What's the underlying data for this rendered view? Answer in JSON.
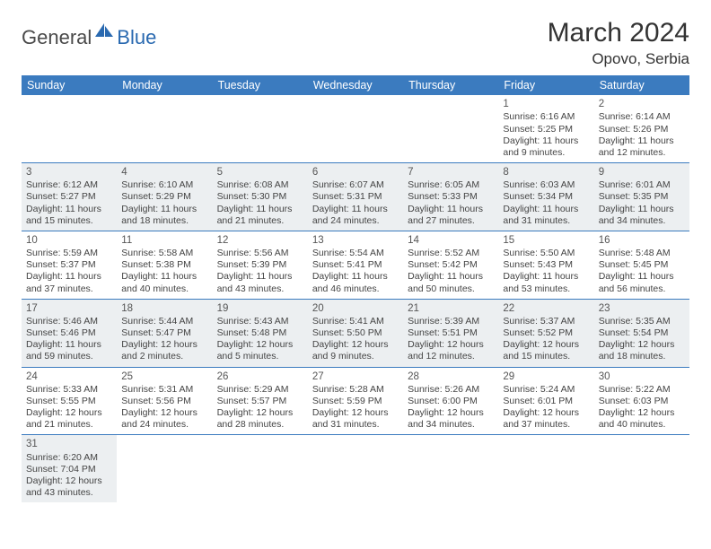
{
  "brand": {
    "general": "General",
    "blue": "Blue"
  },
  "title": "March 2024",
  "location": "Opovo, Serbia",
  "colors": {
    "header_bg": "#3b7bbf",
    "header_fg": "#ffffff",
    "row_alt_bg": "#eceff1",
    "brand_blue": "#2969b0",
    "text": "#444444",
    "rule": "#3b7bbf"
  },
  "layout": {
    "columns": 7,
    "font_family": "Arial",
    "daynum_fontsize": 11.5,
    "cell_fontsize": 10.5
  },
  "weekdays": [
    "Sunday",
    "Monday",
    "Tuesday",
    "Wednesday",
    "Thursday",
    "Friday",
    "Saturday"
  ],
  "weeks": [
    {
      "alt": false,
      "days": [
        null,
        null,
        null,
        null,
        null,
        {
          "n": "1",
          "sunrise": "Sunrise: 6:16 AM",
          "sunset": "Sunset: 5:25 PM",
          "daylight": "Daylight: 11 hours and 9 minutes."
        },
        {
          "n": "2",
          "sunrise": "Sunrise: 6:14 AM",
          "sunset": "Sunset: 5:26 PM",
          "daylight": "Daylight: 11 hours and 12 minutes."
        }
      ]
    },
    {
      "alt": true,
      "days": [
        {
          "n": "3",
          "sunrise": "Sunrise: 6:12 AM",
          "sunset": "Sunset: 5:27 PM",
          "daylight": "Daylight: 11 hours and 15 minutes."
        },
        {
          "n": "4",
          "sunrise": "Sunrise: 6:10 AM",
          "sunset": "Sunset: 5:29 PM",
          "daylight": "Daylight: 11 hours and 18 minutes."
        },
        {
          "n": "5",
          "sunrise": "Sunrise: 6:08 AM",
          "sunset": "Sunset: 5:30 PM",
          "daylight": "Daylight: 11 hours and 21 minutes."
        },
        {
          "n": "6",
          "sunrise": "Sunrise: 6:07 AM",
          "sunset": "Sunset: 5:31 PM",
          "daylight": "Daylight: 11 hours and 24 minutes."
        },
        {
          "n": "7",
          "sunrise": "Sunrise: 6:05 AM",
          "sunset": "Sunset: 5:33 PM",
          "daylight": "Daylight: 11 hours and 27 minutes."
        },
        {
          "n": "8",
          "sunrise": "Sunrise: 6:03 AM",
          "sunset": "Sunset: 5:34 PM",
          "daylight": "Daylight: 11 hours and 31 minutes."
        },
        {
          "n": "9",
          "sunrise": "Sunrise: 6:01 AM",
          "sunset": "Sunset: 5:35 PM",
          "daylight": "Daylight: 11 hours and 34 minutes."
        }
      ]
    },
    {
      "alt": false,
      "days": [
        {
          "n": "10",
          "sunrise": "Sunrise: 5:59 AM",
          "sunset": "Sunset: 5:37 PM",
          "daylight": "Daylight: 11 hours and 37 minutes."
        },
        {
          "n": "11",
          "sunrise": "Sunrise: 5:58 AM",
          "sunset": "Sunset: 5:38 PM",
          "daylight": "Daylight: 11 hours and 40 minutes."
        },
        {
          "n": "12",
          "sunrise": "Sunrise: 5:56 AM",
          "sunset": "Sunset: 5:39 PM",
          "daylight": "Daylight: 11 hours and 43 minutes."
        },
        {
          "n": "13",
          "sunrise": "Sunrise: 5:54 AM",
          "sunset": "Sunset: 5:41 PM",
          "daylight": "Daylight: 11 hours and 46 minutes."
        },
        {
          "n": "14",
          "sunrise": "Sunrise: 5:52 AM",
          "sunset": "Sunset: 5:42 PM",
          "daylight": "Daylight: 11 hours and 50 minutes."
        },
        {
          "n": "15",
          "sunrise": "Sunrise: 5:50 AM",
          "sunset": "Sunset: 5:43 PM",
          "daylight": "Daylight: 11 hours and 53 minutes."
        },
        {
          "n": "16",
          "sunrise": "Sunrise: 5:48 AM",
          "sunset": "Sunset: 5:45 PM",
          "daylight": "Daylight: 11 hours and 56 minutes."
        }
      ]
    },
    {
      "alt": true,
      "days": [
        {
          "n": "17",
          "sunrise": "Sunrise: 5:46 AM",
          "sunset": "Sunset: 5:46 PM",
          "daylight": "Daylight: 11 hours and 59 minutes."
        },
        {
          "n": "18",
          "sunrise": "Sunrise: 5:44 AM",
          "sunset": "Sunset: 5:47 PM",
          "daylight": "Daylight: 12 hours and 2 minutes."
        },
        {
          "n": "19",
          "sunrise": "Sunrise: 5:43 AM",
          "sunset": "Sunset: 5:48 PM",
          "daylight": "Daylight: 12 hours and 5 minutes."
        },
        {
          "n": "20",
          "sunrise": "Sunrise: 5:41 AM",
          "sunset": "Sunset: 5:50 PM",
          "daylight": "Daylight: 12 hours and 9 minutes."
        },
        {
          "n": "21",
          "sunrise": "Sunrise: 5:39 AM",
          "sunset": "Sunset: 5:51 PM",
          "daylight": "Daylight: 12 hours and 12 minutes."
        },
        {
          "n": "22",
          "sunrise": "Sunrise: 5:37 AM",
          "sunset": "Sunset: 5:52 PM",
          "daylight": "Daylight: 12 hours and 15 minutes."
        },
        {
          "n": "23",
          "sunrise": "Sunrise: 5:35 AM",
          "sunset": "Sunset: 5:54 PM",
          "daylight": "Daylight: 12 hours and 18 minutes."
        }
      ]
    },
    {
      "alt": false,
      "days": [
        {
          "n": "24",
          "sunrise": "Sunrise: 5:33 AM",
          "sunset": "Sunset: 5:55 PM",
          "daylight": "Daylight: 12 hours and 21 minutes."
        },
        {
          "n": "25",
          "sunrise": "Sunrise: 5:31 AM",
          "sunset": "Sunset: 5:56 PM",
          "daylight": "Daylight: 12 hours and 24 minutes."
        },
        {
          "n": "26",
          "sunrise": "Sunrise: 5:29 AM",
          "sunset": "Sunset: 5:57 PM",
          "daylight": "Daylight: 12 hours and 28 minutes."
        },
        {
          "n": "27",
          "sunrise": "Sunrise: 5:28 AM",
          "sunset": "Sunset: 5:59 PM",
          "daylight": "Daylight: 12 hours and 31 minutes."
        },
        {
          "n": "28",
          "sunrise": "Sunrise: 5:26 AM",
          "sunset": "Sunset: 6:00 PM",
          "daylight": "Daylight: 12 hours and 34 minutes."
        },
        {
          "n": "29",
          "sunrise": "Sunrise: 5:24 AM",
          "sunset": "Sunset: 6:01 PM",
          "daylight": "Daylight: 12 hours and 37 minutes."
        },
        {
          "n": "30",
          "sunrise": "Sunrise: 5:22 AM",
          "sunset": "Sunset: 6:03 PM",
          "daylight": "Daylight: 12 hours and 40 minutes."
        }
      ]
    },
    {
      "alt": true,
      "last": true,
      "days": [
        {
          "n": "31",
          "sunrise": "Sunrise: 6:20 AM",
          "sunset": "Sunset: 7:04 PM",
          "daylight": "Daylight: 12 hours and 43 minutes."
        },
        null,
        null,
        null,
        null,
        null,
        null
      ]
    }
  ]
}
